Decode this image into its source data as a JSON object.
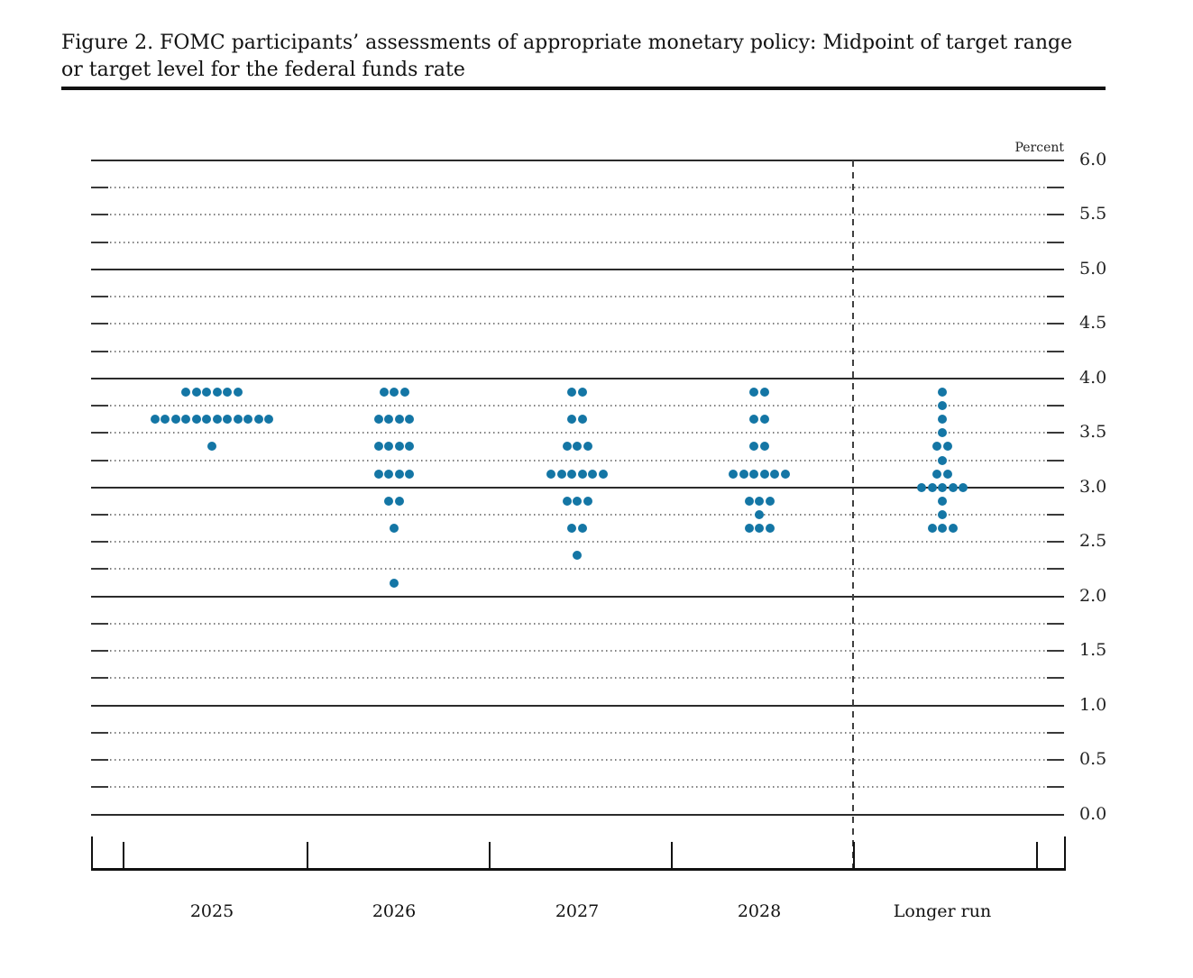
{
  "figure": {
    "title_line1": "Figure 2. FOMC participants’ assessments of appropriate monetary policy: Midpoint of target range",
    "title_line2": "or target level for the federal funds rate"
  },
  "chart_data": {
    "type": "scatter",
    "title": "FOMC participants’ assessments of appropriate monetary policy: Midpoint of target range or target level for the federal funds rate",
    "ylabel": "Percent",
    "percent_label": "Percent",
    "ylim": [
      0.0,
      6.0
    ],
    "ytick_labels": [
      "6.0",
      "5.5",
      "5.0",
      "4.5",
      "4.0",
      "3.5",
      "3.0",
      "2.5",
      "2.0",
      "1.5",
      "1.0",
      "0.5",
      "0.0"
    ],
    "ytick_values": [
      6.0,
      5.5,
      5.0,
      4.5,
      4.0,
      3.5,
      3.0,
      2.5,
      2.0,
      1.5,
      1.0,
      0.5,
      0.0
    ],
    "gridline_step": 0.25,
    "solid_line_at_integers": true,
    "grid_on": true,
    "legend": "none",
    "categories": [
      "2025",
      "2026",
      "2027",
      "2028",
      "Longer run"
    ],
    "dashed_separator_before_category": "Longer run",
    "dot_color": "#1476a5",
    "series": [
      {
        "name": "2025",
        "dots": [
          {
            "rate": 3.875,
            "count": 6
          },
          {
            "rate": 3.625,
            "count": 12
          },
          {
            "rate": 3.375,
            "count": 1
          }
        ]
      },
      {
        "name": "2026",
        "dots": [
          {
            "rate": 3.875,
            "count": 3
          },
          {
            "rate": 3.625,
            "count": 4
          },
          {
            "rate": 3.375,
            "count": 4
          },
          {
            "rate": 3.125,
            "count": 4
          },
          {
            "rate": 2.875,
            "count": 2
          },
          {
            "rate": 2.625,
            "count": 1
          },
          {
            "rate": 2.125,
            "count": 1
          }
        ]
      },
      {
        "name": "2027",
        "dots": [
          {
            "rate": 3.875,
            "count": 2
          },
          {
            "rate": 3.625,
            "count": 2
          },
          {
            "rate": 3.375,
            "count": 3
          },
          {
            "rate": 3.125,
            "count": 6
          },
          {
            "rate": 2.875,
            "count": 3
          },
          {
            "rate": 2.625,
            "count": 2
          },
          {
            "rate": 2.375,
            "count": 1
          }
        ]
      },
      {
        "name": "2028",
        "dots": [
          {
            "rate": 3.875,
            "count": 2
          },
          {
            "rate": 3.625,
            "count": 2
          },
          {
            "rate": 3.375,
            "count": 2
          },
          {
            "rate": 3.125,
            "count": 6
          },
          {
            "rate": 2.875,
            "count": 3
          },
          {
            "rate": 2.75,
            "count": 1
          },
          {
            "rate": 2.625,
            "count": 3
          }
        ]
      },
      {
        "name": "Longer run",
        "dots": [
          {
            "rate": 3.875,
            "count": 1
          },
          {
            "rate": 3.75,
            "count": 1
          },
          {
            "rate": 3.625,
            "count": 1
          },
          {
            "rate": 3.5,
            "count": 1
          },
          {
            "rate": 3.375,
            "count": 2
          },
          {
            "rate": 3.25,
            "count": 1
          },
          {
            "rate": 3.125,
            "count": 2
          },
          {
            "rate": 3.0,
            "count": 5
          },
          {
            "rate": 2.875,
            "count": 1
          },
          {
            "rate": 2.75,
            "count": 1
          },
          {
            "rate": 2.625,
            "count": 3
          }
        ]
      }
    ]
  }
}
